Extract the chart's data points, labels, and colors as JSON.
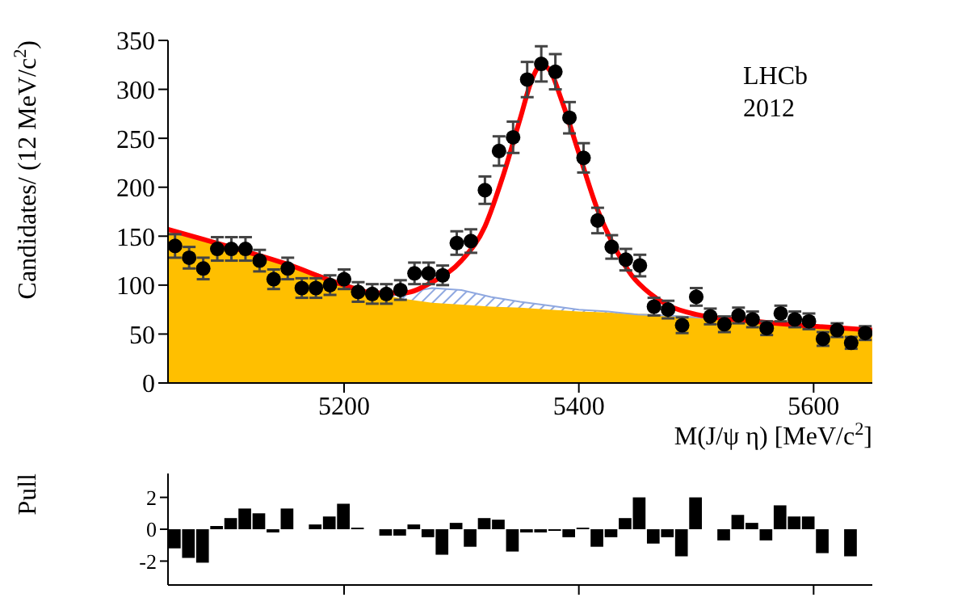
{
  "chart_data": [
    {
      "type": "scatter",
      "xlabel": "M(J/ψ η) [MeV/c$^{2}$]",
      "ylabel": "Candidates/ (12 MeV/c$^{2}$)",
      "annotations": [
        "LHCb",
        "2012"
      ],
      "xlim": [
        5050,
        5650
      ],
      "xticks": [
        5200,
        5400,
        5600
      ],
      "ylim": [
        0,
        350
      ],
      "yticks": [
        0,
        50,
        100,
        150,
        200,
        250,
        300,
        350
      ],
      "stacked": true,
      "series": [
        {
          "type": "area",
          "color": "#ffbf00",
          "x": [
            5050,
            5075,
            5100,
            5125,
            5150,
            5175,
            5200,
            5225,
            5250,
            5275,
            5300,
            5325,
            5350,
            5375,
            5400,
            5425,
            5450,
            5475,
            5500,
            5525,
            5550,
            5575,
            5600,
            5625,
            5650
          ],
          "values": [
            155,
            147,
            139,
            130,
            121,
            112,
            102,
            92,
            86,
            82,
            80,
            78,
            77,
            75,
            73,
            72,
            70,
            69,
            67,
            65,
            63,
            61,
            59,
            57,
            55
          ]
        },
        {
          "type": "area",
          "color": "#8fa8e0",
          "x": [
            5050,
            5075,
            5100,
            5125,
            5150,
            5175,
            5200,
            5225,
            5250,
            5275,
            5300,
            5325,
            5350,
            5375,
            5400,
            5425,
            5450,
            5475,
            5500,
            5525,
            5550,
            5575,
            5600,
            5625,
            5650
          ],
          "values": [
            0,
            0,
            0,
            0,
            0,
            0,
            0,
            0,
            6,
            15,
            15,
            10,
            6,
            4,
            2,
            1,
            0,
            0,
            0,
            0,
            0,
            0,
            0,
            0,
            0
          ]
        },
        {
          "type": "line",
          "color": "#ff0000",
          "x": [
            5050,
            5100,
            5150,
            5200,
            5225,
            5250,
            5275,
            5300,
            5320,
            5335,
            5350,
            5360,
            5368,
            5375,
            5385,
            5400,
            5415,
            5430,
            5445,
            5460,
            5475,
            5500,
            5550,
            5600,
            5650
          ],
          "values": [
            157,
            140,
            122,
            100,
            92,
            92,
            103,
            125,
            160,
            210,
            270,
            310,
            325,
            320,
            290,
            235,
            180,
            140,
            110,
            92,
            80,
            70,
            63,
            58,
            54
          ]
        },
        {
          "color": "#000000",
          "marker": "circle",
          "x": [
            5056,
            5068,
            5080,
            5092,
            5104,
            5116,
            5128,
            5140,
            5152,
            5164,
            5176,
            5188,
            5200,
            5212,
            5224,
            5236,
            5248,
            5260,
            5272,
            5284,
            5296,
            5308,
            5320,
            5332,
            5344,
            5356,
            5368,
            5380,
            5392,
            5404,
            5416,
            5428,
            5440,
            5452,
            5464,
            5476,
            5488,
            5500,
            5512,
            5524,
            5536,
            5548,
            5560,
            5572,
            5584,
            5596,
            5608,
            5620,
            5632,
            5644
          ],
          "values": [
            140,
            128,
            117,
            137,
            137,
            137,
            125,
            106,
            117,
            97,
            97,
            100,
            106,
            93,
            91,
            91,
            95,
            112,
            112,
            110,
            143,
            145,
            197,
            237,
            251,
            310,
            326,
            318,
            271,
            230,
            166,
            139,
            126,
            120,
            78,
            75,
            59,
            88,
            68,
            60,
            69,
            65,
            56,
            71,
            65,
            63,
            45,
            54,
            41,
            51
          ],
          "errors": [
            12,
            11,
            11,
            12,
            12,
            12,
            11,
            10,
            11,
            10,
            10,
            10,
            10,
            10,
            10,
            10,
            10,
            11,
            11,
            10,
            12,
            12,
            14,
            15,
            16,
            18,
            18,
            18,
            16,
            15,
            13,
            12,
            11,
            11,
            9,
            9,
            8,
            9,
            8,
            8,
            8,
            8,
            7,
            8,
            8,
            8,
            7,
            7,
            6,
            7
          ]
        }
      ]
    },
    {
      "type": "bar",
      "ylabel": "Pull",
      "xlim": [
        5050,
        5650
      ],
      "xticks": [
        {
          "value": 5200,
          "label": null
        },
        {
          "value": 5400,
          "label": null
        },
        {
          "value": 5600,
          "label": null
        }
      ],
      "ylim": [
        -3.5,
        3.5
      ],
      "yticks": [
        -2,
        0,
        2
      ],
      "tick_labels": "y",
      "color": "#000000",
      "x": [
        5056,
        5068,
        5080,
        5092,
        5104,
        5116,
        5128,
        5140,
        5152,
        5164,
        5176,
        5188,
        5200,
        5212,
        5224,
        5236,
        5248,
        5260,
        5272,
        5284,
        5296,
        5308,
        5320,
        5332,
        5344,
        5356,
        5368,
        5380,
        5392,
        5404,
        5416,
        5428,
        5440,
        5452,
        5464,
        5476,
        5488,
        5500,
        5512,
        5524,
        5536,
        5548,
        5560,
        5572,
        5584,
        5596,
        5608,
        5620,
        5632,
        5644
      ],
      "values": [
        -1.2,
        -1.8,
        -2.1,
        0.2,
        0.7,
        1.3,
        1.0,
        -0.2,
        1.3,
        0.0,
        0.3,
        0.8,
        1.6,
        0.1,
        0.0,
        -0.4,
        -0.4,
        0.3,
        -0.5,
        -1.6,
        0.4,
        -1.1,
        0.7,
        0.6,
        -1.4,
        -0.2,
        -0.2,
        -0.1,
        -0.5,
        0.1,
        -1.1,
        -0.5,
        0.7,
        2.0,
        -0.9,
        -0.5,
        -1.7,
        2.0,
        0.0,
        -0.7,
        0.9,
        0.4,
        -0.7,
        1.5,
        0.8,
        0.8,
        -1.5,
        0.0,
        -1.7,
        0.0
      ]
    }
  ]
}
